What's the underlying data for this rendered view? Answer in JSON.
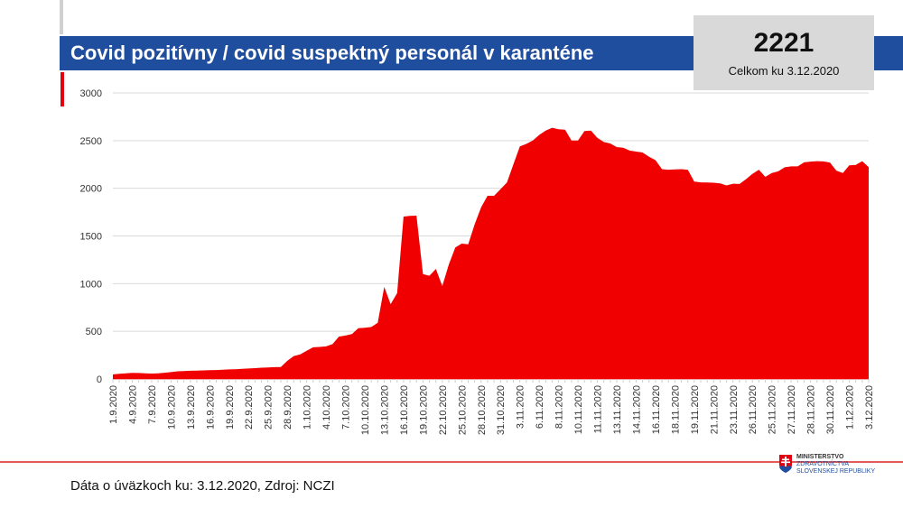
{
  "header": {
    "title": "Covid pozitívny / covid suspektný personál v karanténe"
  },
  "kpi": {
    "value": "2221",
    "label": "Celkom ku 3.12.2020"
  },
  "footer": {
    "source": "Dáta o úväzkoch ku: 3.12.2020, Zdroj: NCZI"
  },
  "logo": {
    "line1": "MINISTERSTVO",
    "line2": "ZDRAVOTNÍCTVA",
    "line3": "SLOVENSKEJ REPUBLIKY"
  },
  "colors": {
    "banner": "#1f4e9e",
    "area": "#f00000",
    "kpi_bg": "#d9d9d9"
  },
  "chart_data": {
    "type": "area",
    "title": "Covid pozitívny / covid suspektný personál v karanténe",
    "ylim": [
      0,
      3000
    ],
    "yticks": [
      0,
      500,
      1000,
      1500,
      2000,
      2500,
      3000
    ],
    "grid": true,
    "label_every": 3,
    "tick_labels": [
      "1.9.2020",
      "4.9.2020",
      "7.9.2020",
      "10.9.2020",
      "13.9.2020",
      "16.9.2020",
      "19.9.2020",
      "22.9.2020",
      "25.9.2020",
      "28.9.2020",
      "1.10.2020",
      "4.10.2020",
      "7.10.2020",
      "10.10.2020",
      "13.10.2020",
      "16.10.2020",
      "19.10.2020",
      "22.10.2020",
      "25.10.2020",
      "28.10.2020",
      "31.10.2020",
      "3.11.2020",
      "6.11.2020",
      "8.11.2020",
      "10.11.2020",
      "11.11.2020",
      "13.11.2020",
      "14.11.2020",
      "16.11.2020",
      "18.11.2020",
      "19.11.2020",
      "21.11.2020",
      "23.11.2020",
      "26.11.2020",
      "25.11.2020",
      "27.11.2020",
      "28.11.2020",
      "30.11.2020",
      "1.12.2020",
      "3.12.2020"
    ],
    "values": [
      47,
      55,
      60,
      63,
      62,
      60,
      57,
      60,
      65,
      72,
      80,
      83,
      86,
      88,
      90,
      92,
      94,
      97,
      100,
      101,
      106,
      110,
      114,
      118,
      121,
      124,
      126,
      190,
      240,
      258,
      295,
      332,
      336,
      342,
      365,
      445,
      455,
      470,
      532,
      538,
      545,
      590,
      965,
      785,
      900,
      1703,
      1710,
      1713,
      1100,
      1083,
      1154,
      975,
      1200,
      1380,
      1420,
      1413,
      1620,
      1800,
      1921,
      1921,
      1990,
      2060,
      2250,
      2440,
      2465,
      2500,
      2560,
      2605,
      2635,
      2620,
      2615,
      2500,
      2500,
      2600,
      2605,
      2530,
      2485,
      2470,
      2432,
      2426,
      2395,
      2385,
      2375,
      2330,
      2295,
      2200,
      2195,
      2198,
      2200,
      2195,
      2070,
      2062,
      2060,
      2058,
      2052,
      2030,
      2048,
      2045,
      2095,
      2150,
      2195,
      2120,
      2160,
      2178,
      2220,
      2230,
      2230,
      2272,
      2280,
      2285,
      2282,
      2270,
      2185,
      2160,
      2240,
      2245,
      2285,
      2221
    ]
  }
}
